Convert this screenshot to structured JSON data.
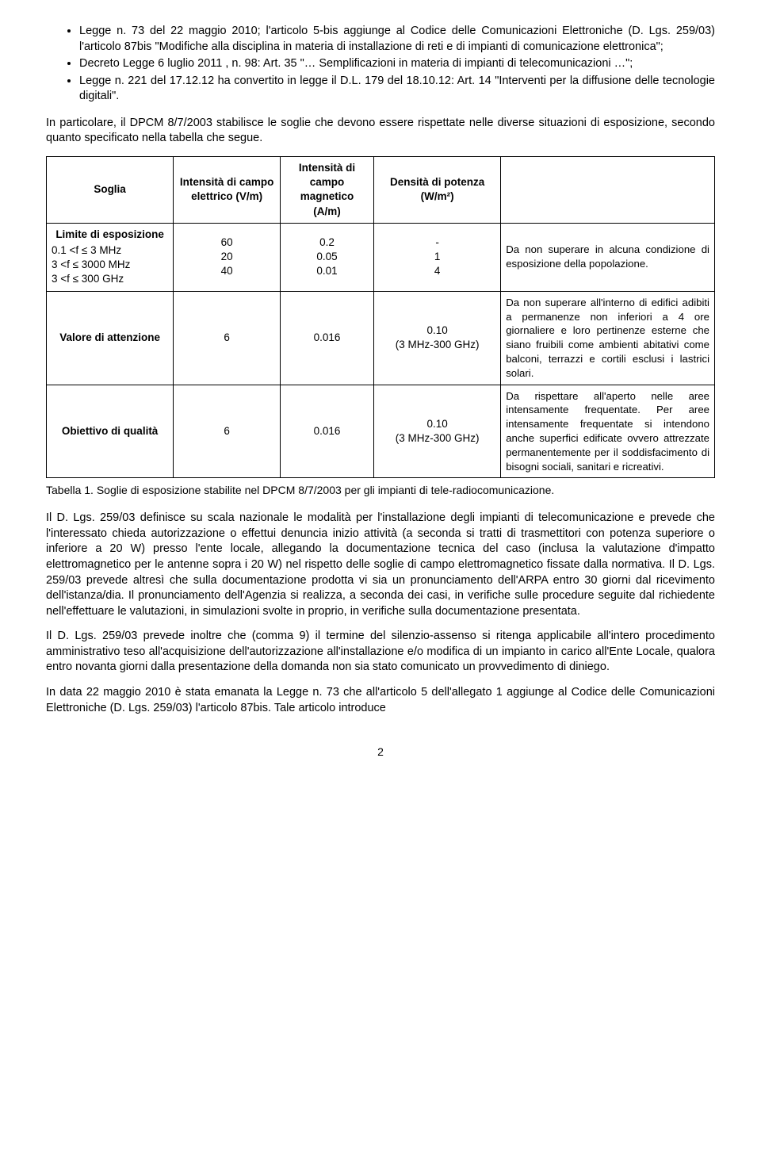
{
  "bullets": [
    "Legge n. 73 del 22 maggio 2010; l'articolo 5-bis aggiunge al Codice delle Comunicazioni Elettroniche (D. Lgs. 259/03) l'articolo 87bis \"Modifiche alla disciplina in materia di installazione di reti e di impianti di comunicazione elettronica\";",
    "Decreto Legge 6 luglio 2011 , n. 98: Art. 35 \"… Semplificazioni in materia di impianti di telecomunicazioni …\";",
    "Legge n. 221 del 17.12.12 ha convertito in legge il D.L. 179 del 18.10.12: Art. 14 \"Interventi per la diffusione delle tecnologie digitali\"."
  ],
  "intro": "In particolare, il DPCM 8/7/2003 stabilisce le soglie che devono essere rispettate nelle diverse situazioni di esposizione, secondo quanto specificato nella tabella che segue.",
  "table": {
    "headers": {
      "c1": "Soglia",
      "c2": "Intensità di campo elettrico (V/m)",
      "c3": "Intensità di campo magnetico (A/m)",
      "c4": "Densità di potenza (W/m²)",
      "c5": ""
    },
    "rows": [
      {
        "soglia_label": "Limite di esposizione",
        "soglia_lines": "0.1 <f ≤ 3 MHz\n3    <f ≤ 3000 MHz\n3    <f ≤ 300 GHz",
        "e": "60\n20\n40",
        "h": "0.2\n0.05\n0.01",
        "d": "-\n1\n4",
        "desc": "Da non superare in alcuna condizione di esposizione della popolazione."
      },
      {
        "soglia_label": "Valore di attenzione",
        "soglia_lines": "",
        "e": "6",
        "h": "0.016",
        "d": "0.10\n(3 MHz-300 GHz)",
        "desc": "Da non superare all'interno di edifici adibiti a permanenze non inferiori a 4 ore giornaliere e loro pertinenze esterne che siano fruibili come ambienti abitativi come balconi, terrazzi e cortili esclusi i lastrici solari."
      },
      {
        "soglia_label": "Obiettivo di qualità",
        "soglia_lines": "",
        "e": "6",
        "h": "0.016",
        "d": "0.10\n(3 MHz-300 GHz)",
        "desc": "Da rispettare all'aperto nelle aree intensamente frequentate. Per aree intensamente frequentate si intendono anche superfici edificate ovvero attrezzate permanentemente per il soddisfacimento di bisogni sociali, sanitari e ricreativi."
      }
    ]
  },
  "caption": "Tabella 1. Soglie di esposizione stabilite nel DPCM 8/7/2003 per gli impianti di tele-radiocomunicazione.",
  "para1": "Il D. Lgs. 259/03 definisce su scala nazionale le modalità per l'installazione degli impianti di telecomunicazione e prevede che l'interessato chieda autorizzazione o effettui denuncia inizio attività (a seconda si tratti di trasmettitori con potenza superiore o inferiore a 20 W) presso l'ente locale, allegando la documentazione tecnica del caso (inclusa la valutazione d'impatto elettromagnetico per le antenne sopra i 20 W) nel rispetto delle soglie di campo elettromagnetico fissate dalla normativa. Il D. Lgs. 259/03 prevede altresì che sulla documentazione prodotta vi sia un pronunciamento dell'ARPA entro 30 giorni dal ricevimento dell'istanza/dia. Il pronunciamento dell'Agenzia si realizza, a seconda dei casi, in verifiche sulle procedure seguite dal richiedente nell'effettuare le valutazioni, in simulazioni svolte in proprio, in verifiche sulla documentazione presentata.",
  "para2": "Il D. Lgs. 259/03 prevede inoltre che (comma 9) il termine del silenzio-assenso si ritenga applicabile all'intero procedimento amministrativo teso all'acquisizione dell'autorizzazione all'installazione e/o modifica di un impianto in carico all'Ente Locale, qualora entro novanta giorni dalla presentazione della domanda non sia stato comunicato un provvedimento di diniego.",
  "para3": "In data 22 maggio 2010 è stata emanata la Legge n. 73 che all'articolo 5 dell'allegato 1 aggiunge al Codice delle Comunicazioni Elettroniche (D. Lgs. 259/03) l'articolo 87bis. Tale articolo introduce",
  "page_number": "2"
}
